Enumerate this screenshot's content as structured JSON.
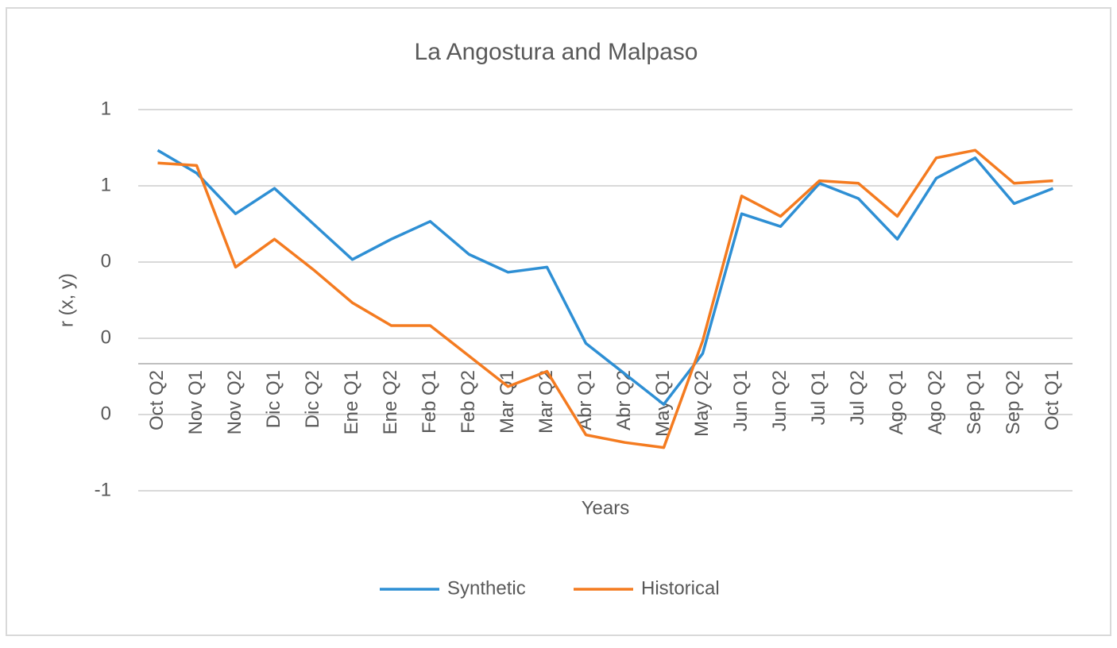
{
  "chart_data": {
    "type": "line",
    "title": "La Angostura and Malpaso",
    "xlabel": "Years",
    "ylabel": "r (x, y)",
    "categories": [
      "Oct Q2",
      "Nov Q1",
      "Nov Q2",
      "Dic Q1",
      "Dic Q2",
      "Ene Q1",
      "Ene Q2",
      "Feb Q1",
      "Feb Q2",
      "Mar Q1",
      "Mar Q2",
      "Abr Q1",
      "Abr Q2",
      "May Q1",
      "May Q2",
      "Jun Q1",
      "Jun Q2",
      "Jul Q1",
      "Jul Q2",
      "Ago Q1",
      "Ago Q2",
      "Sep Q1",
      "Sep Q2",
      "Oct Q1"
    ],
    "series": [
      {
        "name": "Synthetic",
        "color": "#2e8fd4",
        "values": [
          0.84,
          0.75,
          0.59,
          0.69,
          0.55,
          0.41,
          0.49,
          0.56,
          0.43,
          0.36,
          0.38,
          0.08,
          -0.04,
          -0.16,
          0.04,
          0.59,
          0.54,
          0.71,
          0.65,
          0.49,
          0.73,
          0.81,
          0.63,
          0.69
        ]
      },
      {
        "name": "Historical",
        "color": "#f47b20",
        "values": [
          0.79,
          0.78,
          0.38,
          0.49,
          0.37,
          0.24,
          0.15,
          0.15,
          0.03,
          -0.09,
          -0.03,
          -0.28,
          -0.31,
          -0.33,
          0.09,
          0.66,
          0.58,
          0.72,
          0.71,
          0.58,
          0.81,
          0.84,
          0.71,
          0.72
        ]
      }
    ],
    "ylim": [
      -0.5,
      1.0
    ],
    "yticks": [
      {
        "value": -0.5,
        "label": "-1"
      },
      {
        "value": -0.2,
        "label": "0"
      },
      {
        "value": 0.1,
        "label": "0"
      },
      {
        "value": 0.4,
        "label": "0"
      },
      {
        "value": 0.7,
        "label": "1"
      },
      {
        "value": 1.0,
        "label": "1"
      }
    ],
    "grid": true,
    "legend": "bottom"
  }
}
